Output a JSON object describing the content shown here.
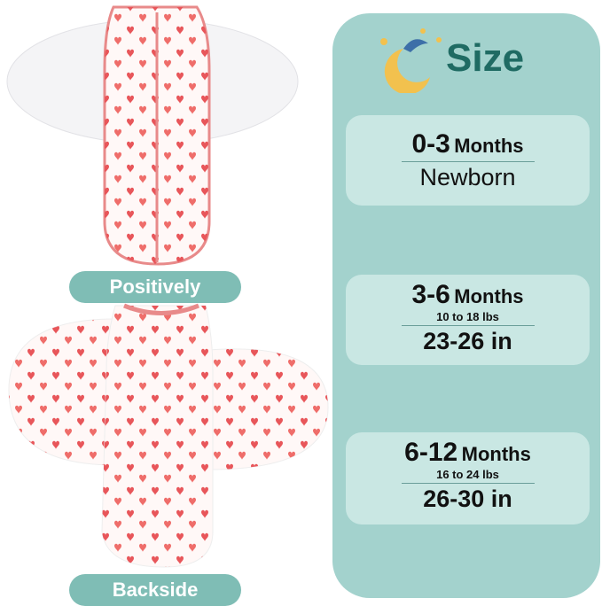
{
  "labels": {
    "front": "Positively",
    "back": "Backside"
  },
  "size_panel": {
    "title": "Size",
    "sizes": [
      {
        "range": "0-3",
        "unit": "Months",
        "detail": "Newborn"
      },
      {
        "range": "3-6",
        "unit": "Months",
        "weight": "10 to 18 lbs",
        "length": "23-26 in"
      },
      {
        "range": "6-12",
        "unit": "Months",
        "weight": "16 to 24 lbs",
        "length": "26-30 in"
      }
    ]
  }
}
